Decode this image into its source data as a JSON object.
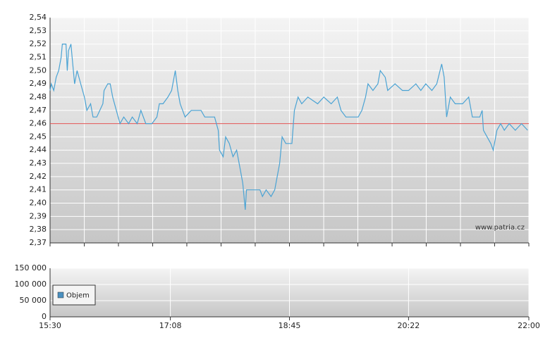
{
  "chart_data": [
    {
      "type": "line",
      "annotation": "www.patria.cz",
      "x": [
        930,
        931,
        933,
        935,
        937,
        939,
        940,
        943,
        944,
        945,
        947,
        948,
        950,
        952,
        955,
        958,
        959,
        960,
        963,
        965,
        968,
        973,
        974,
        977,
        979,
        981,
        984,
        987,
        990,
        994,
        997,
        1001,
        1004,
        1008,
        1013,
        1017,
        1019,
        1022,
        1026,
        1029,
        1032,
        1034,
        1036,
        1040,
        1045,
        1053,
        1056,
        1064,
        1067,
        1068,
        1071,
        1073,
        1076,
        1079,
        1082,
        1085,
        1087,
        1089,
        1090,
        1096,
        1101,
        1103,
        1106,
        1110,
        1113,
        1117,
        1119,
        1122,
        1127,
        1129,
        1132,
        1135,
        1140,
        1148,
        1153,
        1159,
        1164,
        1167,
        1171,
        1176,
        1181,
        1184,
        1187,
        1189,
        1193,
        1197,
        1199,
        1203,
        1205,
        1211,
        1217,
        1222,
        1228,
        1232,
        1236,
        1241,
        1245,
        1249,
        1251,
        1253,
        1256,
        1260,
        1266,
        1271,
        1274,
        1280,
        1282,
        1283,
        1286,
        1289,
        1291,
        1294,
        1297,
        1300,
        1304,
        1309,
        1314,
        1319
      ],
      "values": [
        2.485,
        2.49,
        2.485,
        2.495,
        2.5,
        2.51,
        2.52,
        2.52,
        2.5,
        2.515,
        2.52,
        2.51,
        2.49,
        2.5,
        2.49,
        2.48,
        2.475,
        2.47,
        2.475,
        2.465,
        2.465,
        2.475,
        2.485,
        2.49,
        2.49,
        2.48,
        2.47,
        2.46,
        2.465,
        2.46,
        2.465,
        2.46,
        2.47,
        2.46,
        2.46,
        2.465,
        2.475,
        2.475,
        2.48,
        2.485,
        2.5,
        2.485,
        2.475,
        2.465,
        2.47,
        2.47,
        2.465,
        2.465,
        2.455,
        2.44,
        2.435,
        2.45,
        2.445,
        2.435,
        2.44,
        2.425,
        2.415,
        2.395,
        2.41,
        2.41,
        2.41,
        2.405,
        2.41,
        2.405,
        2.41,
        2.43,
        2.45,
        2.445,
        2.445,
        2.47,
        2.48,
        2.475,
        2.48,
        2.475,
        2.48,
        2.475,
        2.48,
        2.47,
        2.465,
        2.465,
        2.465,
        2.47,
        2.48,
        2.49,
        2.485,
        2.49,
        2.5,
        2.495,
        2.485,
        2.49,
        2.485,
        2.485,
        2.49,
        2.485,
        2.49,
        2.485,
        2.49,
        2.505,
        2.495,
        2.465,
        2.48,
        2.475,
        2.475,
        2.48,
        2.465,
        2.465,
        2.47,
        2.455,
        2.45,
        2.445,
        2.44,
        2.455,
        2.46,
        2.455,
        2.46,
        2.455,
        2.46,
        2.455
      ],
      "color": "#4aa3d4",
      "reference_line": 2.46,
      "reference_color": "#e05050",
      "xlim": [
        930,
        1320
      ],
      "xticks": [
        {
          "value": 930,
          "label": null
        },
        {
          "value": 957.9,
          "label": null
        },
        {
          "value": 985.7,
          "label": null
        },
        {
          "value": 1013.6,
          "label": null
        },
        {
          "value": 1041.4,
          "label": null
        },
        {
          "value": 1069.3,
          "label": null
        },
        {
          "value": 1097.1,
          "label": null
        },
        {
          "value": 1125,
          "label": null
        },
        {
          "value": 1152.9,
          "label": null
        },
        {
          "value": 1180.7,
          "label": null
        },
        {
          "value": 1208.6,
          "label": null
        },
        {
          "value": 1236.4,
          "label": null
        },
        {
          "value": 1264.3,
          "label": null
        },
        {
          "value": 1292.1,
          "label": null
        },
        {
          "value": 1320,
          "label": null
        }
      ],
      "ylim": [
        2.37,
        2.54
      ],
      "yticks": [
        {
          "value": 2.37,
          "label": "2,37"
        },
        {
          "value": 2.38,
          "label": "2,38"
        },
        {
          "value": 2.39,
          "label": "2,39"
        },
        {
          "value": 2.4,
          "label": "2,40"
        },
        {
          "value": 2.41,
          "label": "2,41"
        },
        {
          "value": 2.42,
          "label": "2,42"
        },
        {
          "value": 2.43,
          "label": "2,43"
        },
        {
          "value": 2.44,
          "label": "2,44"
        },
        {
          "value": 2.45,
          "label": "2,45"
        },
        {
          "value": 2.46,
          "label": "2,46"
        },
        {
          "value": 2.47,
          "label": "2,47"
        },
        {
          "value": 2.48,
          "label": "2,48"
        },
        {
          "value": 2.49,
          "label": "2,49"
        },
        {
          "value": 2.5,
          "label": "2,50"
        },
        {
          "value": 2.51,
          "label": "2,51"
        },
        {
          "value": 2.52,
          "label": "2,52"
        },
        {
          "value": 2.53,
          "label": "2,53"
        },
        {
          "value": 2.54,
          "label": "2,54"
        }
      ],
      "grid": true
    },
    {
      "type": "bar",
      "series": [
        {
          "name": "Objem",
          "color": "#4a90c0"
        }
      ],
      "xlim": [
        930,
        1320
      ],
      "xticks": [
        {
          "value": 930,
          "label": "15:30"
        },
        {
          "value": 1028,
          "label": "17:08"
        },
        {
          "value": 1125,
          "label": "18:45"
        },
        {
          "value": 1222,
          "label": "20:22"
        },
        {
          "value": 1320,
          "label": "22:00"
        }
      ],
      "ylim": [
        0,
        150000
      ],
      "yticks": [
        0,
        {
          "value": 50000,
          "label": "50 000"
        },
        {
          "value": 100000,
          "label": "100 000"
        },
        {
          "value": 150000,
          "label": "150 000"
        }
      ],
      "grid": true
    }
  ]
}
